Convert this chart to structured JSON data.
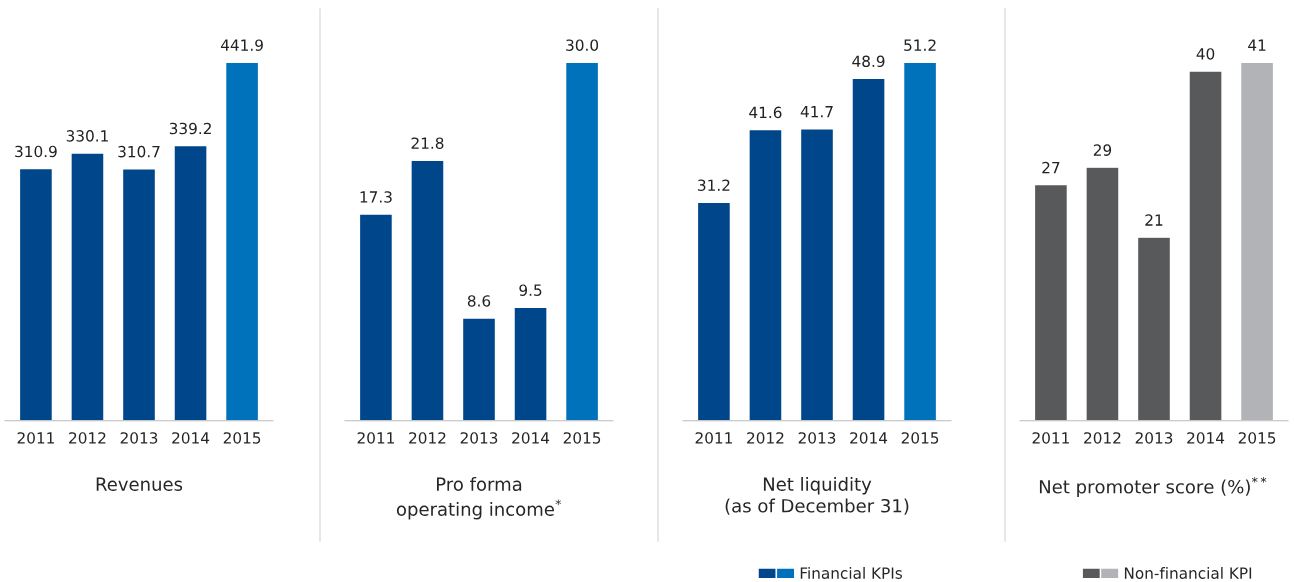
{
  "chart_data": [
    {
      "type": "bar",
      "title": "Revenues",
      "categories": [
        "2011",
        "2012",
        "2013",
        "2014",
        "2015"
      ],
      "series": [
        {
          "values": [
            310.9,
            330.1,
            310.7,
            339.2,
            441.9
          ],
          "colors": [
            "#00468b",
            "#00468b",
            "#00468b",
            "#00468b",
            "#0072bc"
          ]
        }
      ],
      "data_labels": true,
      "tick_labels": "x"
    },
    {
      "type": "bar",
      "title": "Pro forma\noperating income$^{*}$",
      "categories": [
        "2011",
        "2012",
        "2013",
        "2014",
        "2015"
      ],
      "series": [
        {
          "values": [
            17.3,
            21.8,
            8.6,
            9.5,
            30.0
          ],
          "value_labels": [
            "17.3",
            "21.8",
            "8.6",
            "9.5",
            "30.0"
          ],
          "colors": [
            "#00468b",
            "#00468b",
            "#00468b",
            "#00468b",
            "#0072bc"
          ]
        }
      ],
      "tick_labels": "x"
    },
    {
      "type": "bar",
      "title": "Net liquidity\n(as of December 31)",
      "categories": [
        "2011",
        "2012",
        "2013",
        "2014",
        "2015"
      ],
      "series": [
        {
          "name": "Financial KPIs",
          "values": [
            31.2,
            41.6,
            41.7,
            48.9,
            51.2
          ],
          "colors": [
            "#00468b",
            "#00468b",
            "#00468b",
            "#00468b",
            "#0072bc"
          ]
        }
      ],
      "data_labels": true,
      "tick_labels": "x",
      "legend": "bottom"
    },
    {
      "type": "bar",
      "title": "Net promoter score (%)$^{**}$",
      "categories": [
        "2011",
        "2012",
        "2013",
        "2014",
        "2015"
      ],
      "series": [
        {
          "name": "Non-financial KPI",
          "values": [
            27,
            29,
            21,
            40,
            41
          ],
          "colors": [
            "#58595b",
            "#58595b",
            "#58595b",
            "#58595b",
            "#b1b3b6"
          ]
        }
      ],
      "data_labels": true,
      "tick_labels": "x",
      "legend": "bottom"
    }
  ]
}
